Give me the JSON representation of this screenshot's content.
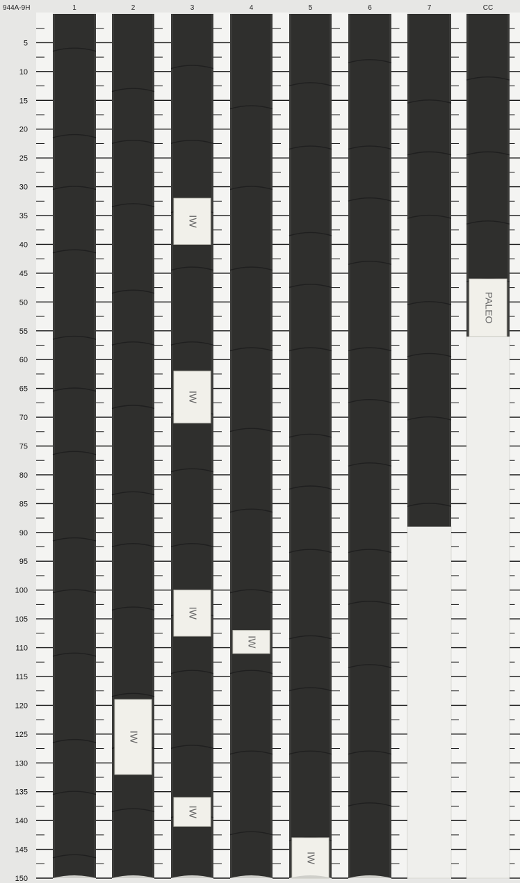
{
  "core_id": "944A-9H",
  "columns": [
    {
      "label": "1",
      "top_cm": 0,
      "bottom_cm": 150,
      "samples": []
    },
    {
      "label": "2",
      "top_cm": 0,
      "bottom_cm": 150,
      "samples": [
        {
          "from_cm": 119,
          "to_cm": 132,
          "label": "IW"
        }
      ]
    },
    {
      "label": "3",
      "top_cm": 0,
      "bottom_cm": 150,
      "samples": [
        {
          "from_cm": 32,
          "to_cm": 40,
          "label": "IW"
        },
        {
          "from_cm": 62,
          "to_cm": 71,
          "label": "IW"
        },
        {
          "from_cm": 100,
          "to_cm": 108,
          "label": "IW"
        },
        {
          "from_cm": 136,
          "to_cm": 141,
          "label": "IW"
        }
      ]
    },
    {
      "label": "4",
      "top_cm": 0,
      "bottom_cm": 150,
      "samples": [
        {
          "from_cm": 107,
          "to_cm": 111,
          "label": "IW"
        }
      ]
    },
    {
      "label": "5",
      "top_cm": 0,
      "bottom_cm": 150,
      "samples": [
        {
          "from_cm": 143,
          "to_cm": 150,
          "label": "IW"
        }
      ]
    },
    {
      "label": "6",
      "top_cm": 0,
      "bottom_cm": 150,
      "samples": []
    },
    {
      "label": "7",
      "top_cm": 0,
      "bottom_cm": 89,
      "samples": []
    },
    {
      "label": "CC",
      "top_cm": 0,
      "bottom_cm": 56,
      "samples": [
        {
          "from_cm": 46,
          "to_cm": 56,
          "label": "PALEO"
        }
      ]
    }
  ],
  "depth_scale": {
    "unit": "cm",
    "min": 0,
    "max": 150,
    "label_step": 5,
    "tick_step": 2.5,
    "labels": [
      "5",
      "10",
      "15",
      "20",
      "25",
      "30",
      "35",
      "40",
      "45",
      "50",
      "55",
      "60",
      "65",
      "70",
      "75",
      "80",
      "85",
      "90",
      "95",
      "100",
      "105",
      "110",
      "115",
      "120",
      "125",
      "130",
      "135",
      "140",
      "145",
      "150"
    ]
  },
  "colors": {
    "sediment": "#2f2f2d",
    "background": "#e7e7e5",
    "ruler": "#f4f4f2",
    "label_card": "#f1f0ea",
    "empty_liner": "#efefec",
    "tick": "#151515"
  }
}
